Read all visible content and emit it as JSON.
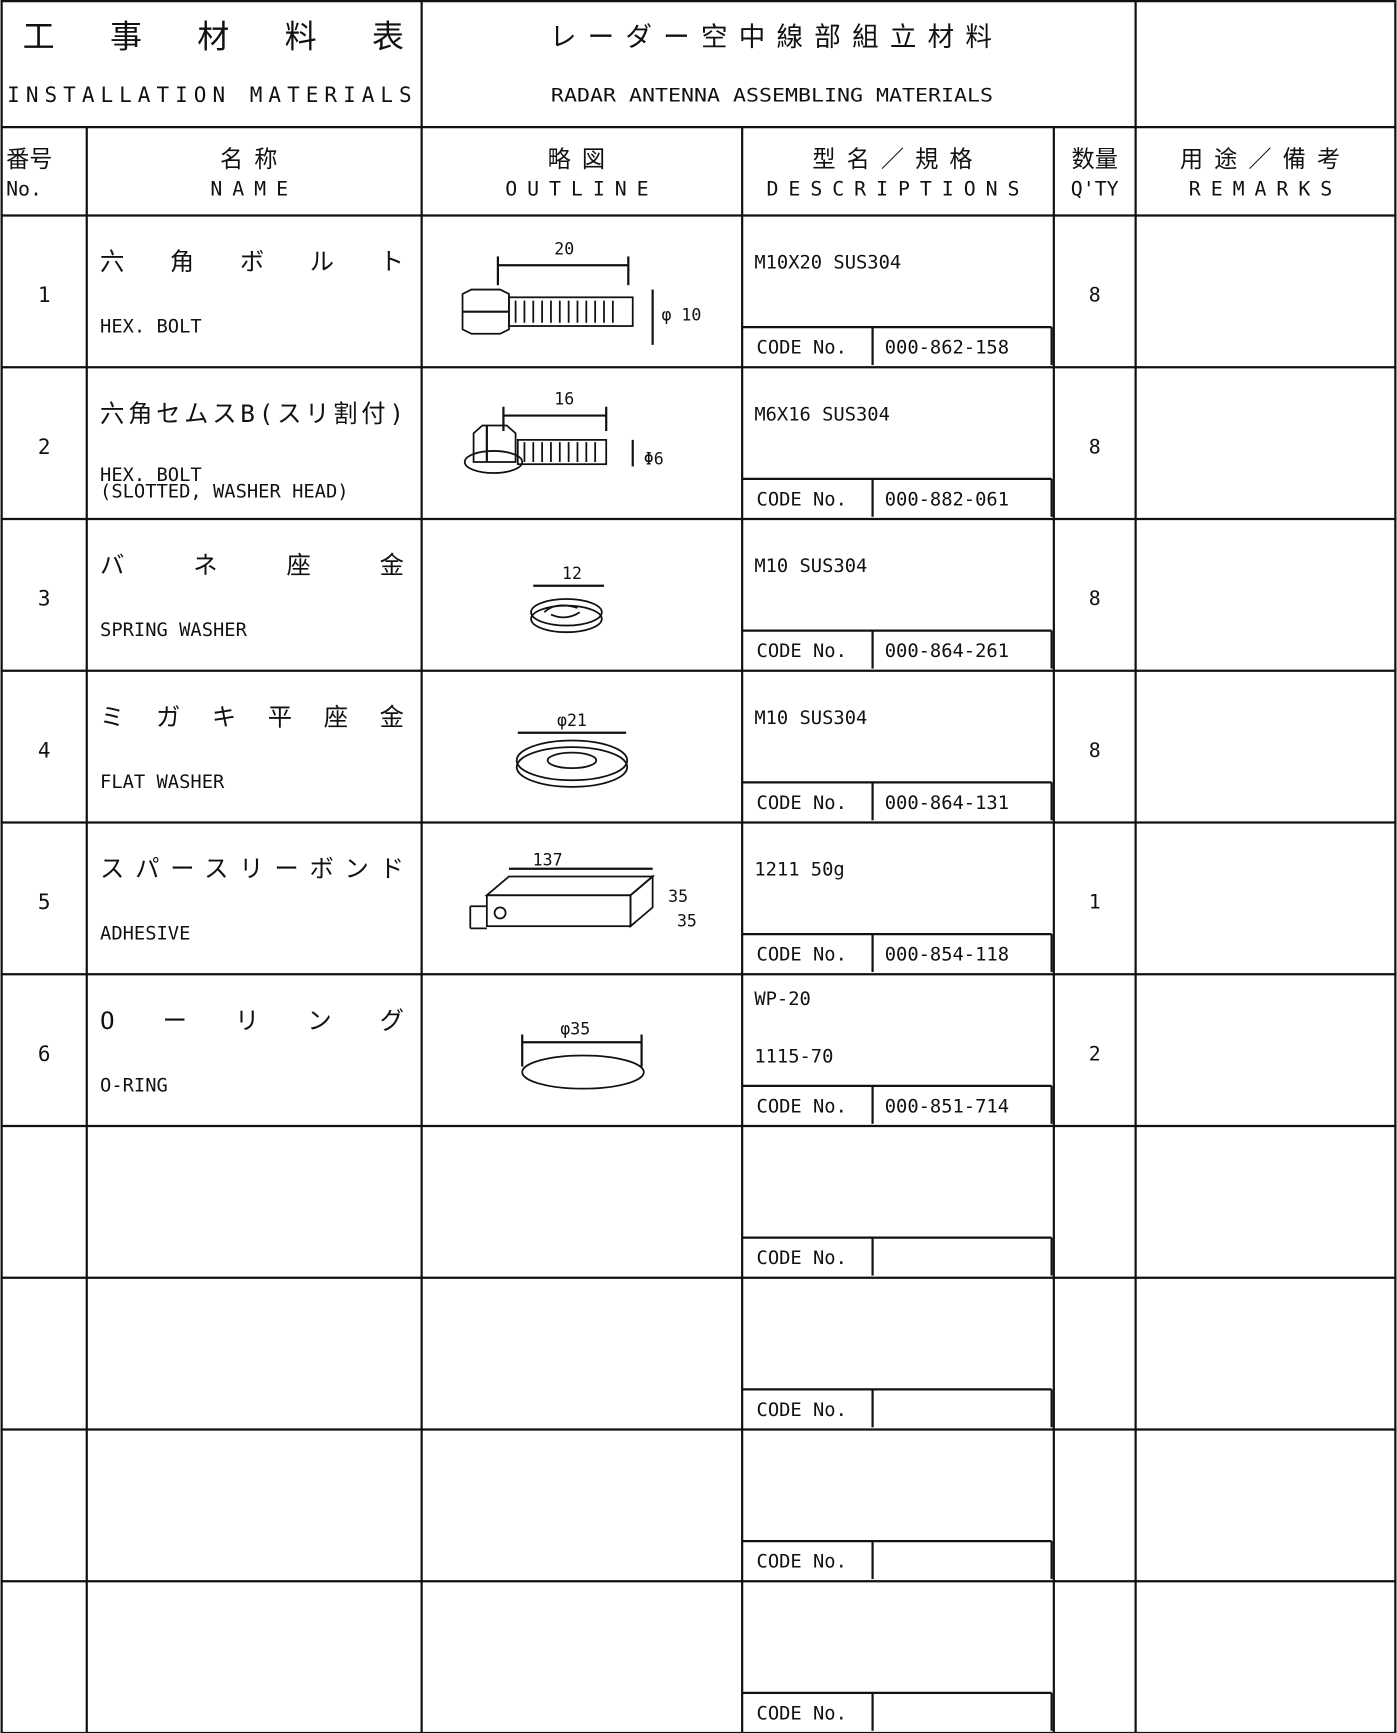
{
  "header": {
    "title_jp": "工事材料表",
    "title_en": "INSTALLATION MATERIALS",
    "subject_jp": "レーダー空中線部組立材料",
    "subject_en": "RADAR ANTENNA ASSEMBLING MATERIALS"
  },
  "columns": [
    {
      "jp": "番号",
      "en": "No."
    },
    {
      "jp": "名称",
      "en": "NAME"
    },
    {
      "jp": "略図",
      "en": "OUTLINE"
    },
    {
      "jp": "型名／規格",
      "en": "DESCRIPTIONS"
    },
    {
      "jp": "数量",
      "en": "Q'TY"
    },
    {
      "jp": "用途／備考",
      "en": "REMARKS"
    }
  ],
  "code_label": "CODE No.",
  "rows": [
    {
      "no": "1",
      "name_jp": "六角ボルト",
      "name_en": [
        "HEX. BOLT"
      ],
      "outline_dims": [
        "20",
        "φ 10"
      ],
      "desc": [
        "M10X20  SUS304"
      ],
      "code": "000-862-158",
      "qty": "8"
    },
    {
      "no": "2",
      "name_jp": "六角セムスB(スリ割付)",
      "name_en": [
        "HEX. BOLT",
        "(SLOTTED, WASHER HEAD)"
      ],
      "outline_dims": [
        "16",
        "Φ6"
      ],
      "desc": [
        "M6X16  SUS304"
      ],
      "code": "000-882-061",
      "qty": "8"
    },
    {
      "no": "3",
      "name_jp": "バネ座金",
      "name_en": [
        "SPRING WASHER"
      ],
      "outline_dims": [
        "12"
      ],
      "desc": [
        "M10 SUS304"
      ],
      "code": "000-864-261",
      "qty": "8"
    },
    {
      "no": "4",
      "name_jp": "ミガキ平座金",
      "name_en": [
        "FLAT WASHER"
      ],
      "outline_dims": [
        "φ21"
      ],
      "desc": [
        "M10 SUS304"
      ],
      "code": "000-864-131",
      "qty": "8"
    },
    {
      "no": "5",
      "name_jp": "スパースリーボンド",
      "name_en": [
        "ADHESIVE"
      ],
      "outline_dims": [
        "137",
        "35",
        "35"
      ],
      "desc": [
        "1211  50g"
      ],
      "code": "000-854-118",
      "qty": "1"
    },
    {
      "no": "6",
      "name_jp": "Oーリング",
      "name_en": [
        "O-RING"
      ],
      "outline_dims": [
        "φ35"
      ],
      "desc": [
        "WP-20",
        "1115-70"
      ],
      "code": "000-851-714",
      "qty": "2"
    }
  ]
}
